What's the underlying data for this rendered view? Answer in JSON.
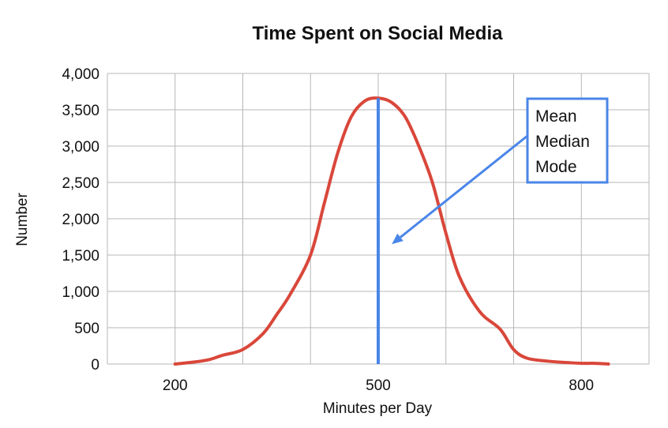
{
  "chart_data": {
    "type": "line",
    "title": "Time Spent on Social Media",
    "xlabel": "Minutes per Day",
    "ylabel": "Number",
    "xlim": [
      100,
      900
    ],
    "ylim": [
      0,
      4000
    ],
    "x_ticks": [
      200,
      500,
      800
    ],
    "y_ticks": [
      0,
      500,
      1000,
      1500,
      2000,
      2500,
      3000,
      3500,
      4000
    ],
    "y_tick_labels": [
      "0",
      "500",
      "1,000",
      "1,500",
      "2,000",
      "2,500",
      "3,000",
      "3,500",
      "4,000"
    ],
    "grid": true,
    "series": [
      {
        "color": "#d9473a",
        "x": [
          200,
          230,
          250,
          270,
          300,
          330,
          350,
          370,
          400,
          420,
          440,
          460,
          480,
          500,
          520,
          540,
          560,
          580,
          600,
          620,
          650,
          680,
          700,
          720,
          750,
          780,
          800,
          820,
          840
        ],
        "y": [
          0,
          30,
          60,
          120,
          200,
          420,
          680,
          960,
          1500,
          2200,
          2900,
          3400,
          3620,
          3660,
          3600,
          3400,
          3000,
          2500,
          1800,
          1200,
          720,
          480,
          200,
          80,
          40,
          20,
          10,
          10,
          0
        ]
      }
    ],
    "vertical_line": {
      "x": 500,
      "color": "#4a86e8"
    },
    "annotation": {
      "lines": [
        "Mean",
        "Median",
        "Mode"
      ],
      "color": "#4a86e8",
      "arrow_to": {
        "x": 520,
        "y": 1650
      }
    }
  }
}
